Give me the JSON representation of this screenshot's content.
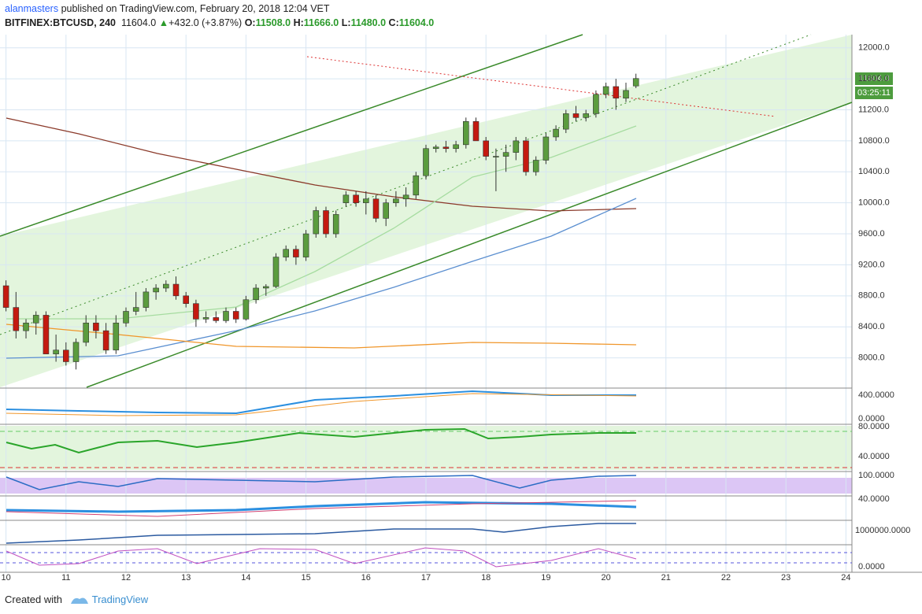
{
  "header": {
    "author": "alanmasters",
    "published": "published on TradingView.com, February 20, 2018 12:04 VET",
    "symbol": "BITFINEX:BTCUSD, 240",
    "last": "11604.0",
    "change": "+432.0 (+3.87%)",
    "o_label": "O:",
    "o": "11508.0",
    "h_label": "H:",
    "h": "11666.0",
    "l_label": "L:",
    "l": "11480.0",
    "c_label": "C:",
    "c": "11604.0"
  },
  "price_tag": "11604.0",
  "timer": "03:25:11",
  "panes": [
    "400.0000",
    "0.0000",
    "80.0000",
    "40.0000",
    "100.0000",
    "40.0000",
    "1000000.0000",
    "0.0000"
  ],
  "footer": {
    "created": "Created with",
    "brand": "TradingView"
  },
  "chart_data": {
    "type": "candlestick",
    "up_color": "#5b9c3e",
    "down_color": "#c41a10",
    "grid": true,
    "xlim": [
      9.9,
      24.1
    ],
    "xticks": [
      10,
      11,
      12,
      13,
      14,
      15,
      16,
      17,
      18,
      19,
      20,
      21,
      22,
      23,
      24
    ],
    "ylim": [
      7620,
      12170
    ],
    "yticks": [
      {
        "value": 8000,
        "label": "8000.0"
      },
      {
        "value": 8400,
        "label": "8400.0"
      },
      {
        "value": 8800,
        "label": "8800.0"
      },
      {
        "value": 9200,
        "label": "9200.0"
      },
      {
        "value": 9600,
        "label": "9600.0"
      },
      {
        "value": 10000,
        "label": "10000.0"
      },
      {
        "value": 10400,
        "label": "10400.0"
      },
      {
        "value": 10800,
        "label": "10800.0"
      },
      {
        "value": 11200,
        "label": "11200.0"
      },
      {
        "value": 11600,
        "label": "11600.0"
      },
      {
        "value": 12000,
        "label": "12000.0"
      }
    ],
    "open": [
      8930,
      8650,
      8350,
      8450,
      8550,
      8050,
      8100,
      7950,
      8200,
      8450,
      8350,
      8100,
      8450,
      8600,
      8650,
      8850,
      8900,
      8950,
      8800,
      8700,
      8500,
      8520,
      8480,
      8600,
      8500,
      8750,
      8900,
      8920,
      9300,
      9400,
      9300,
      9600,
      9900,
      9600,
      10000,
      10100,
      10000,
      10050,
      9800,
      10000,
      10050,
      10100,
      10350,
      10700,
      10720,
      10700,
      10750,
      11050,
      10800,
      10600,
      10600,
      10650,
      10800,
      10400,
      10550,
      10850,
      10950,
      11150,
      11100,
      11150,
      11400,
      11500,
      11350,
      11508
    ],
    "high": [
      9000,
      8850,
      8500,
      8600,
      8600,
      8300,
      8200,
      8250,
      8550,
      8550,
      8450,
      8550,
      8650,
      8850,
      8900,
      8950,
      9000,
      9050,
      8850,
      8750,
      8600,
      8600,
      8650,
      8650,
      8800,
      8950,
      8950,
      9350,
      9450,
      9450,
      9650,
      9950,
      9950,
      9900,
      10150,
      10150,
      10150,
      10100,
      10050,
      10150,
      10200,
      10400,
      10750,
      10750,
      10800,
      10800,
      11100,
      11100,
      10850,
      10700,
      10750,
      10850,
      10850,
      10600,
      10900,
      11000,
      11200,
      11250,
      11200,
      11450,
      11550,
      11600,
      11550,
      11666
    ],
    "low": [
      8600,
      8250,
      8250,
      8300,
      8050,
      7950,
      7900,
      7850,
      8150,
      8250,
      8050,
      8050,
      8400,
      8550,
      8600,
      8750,
      8850,
      8750,
      8650,
      8400,
      8450,
      8450,
      8450,
      8450,
      8480,
      8700,
      8800,
      8900,
      9250,
      9200,
      9250,
      9550,
      9550,
      9550,
      9950,
      9950,
      9850,
      9750,
      9700,
      9950,
      9950,
      10050,
      10300,
      10650,
      10650,
      10650,
      10700,
      10800,
      10550,
      10150,
      10400,
      10550,
      10350,
      10350,
      10500,
      10800,
      10900,
      11050,
      11050,
      11100,
      11350,
      11200,
      11300,
      11480
    ],
    "close": [
      8650,
      8350,
      8450,
      8550,
      8050,
      8100,
      7950,
      8200,
      8450,
      8350,
      8100,
      8450,
      8600,
      8650,
      8850,
      8900,
      8950,
      8800,
      8700,
      8500,
      8520,
      8480,
      8600,
      8500,
      8750,
      8900,
      8920,
      9300,
      9400,
      9300,
      9600,
      9900,
      9600,
      9850,
      10100,
      10000,
      10050,
      9800,
      10000,
      10050,
      10100,
      10350,
      10700,
      10720,
      10700,
      10750,
      11050,
      10800,
      10600,
      10600,
      10650,
      10800,
      10400,
      10550,
      10850,
      10950,
      11150,
      11100,
      11150,
      11400,
      11500,
      11350,
      11450,
      11604
    ]
  }
}
